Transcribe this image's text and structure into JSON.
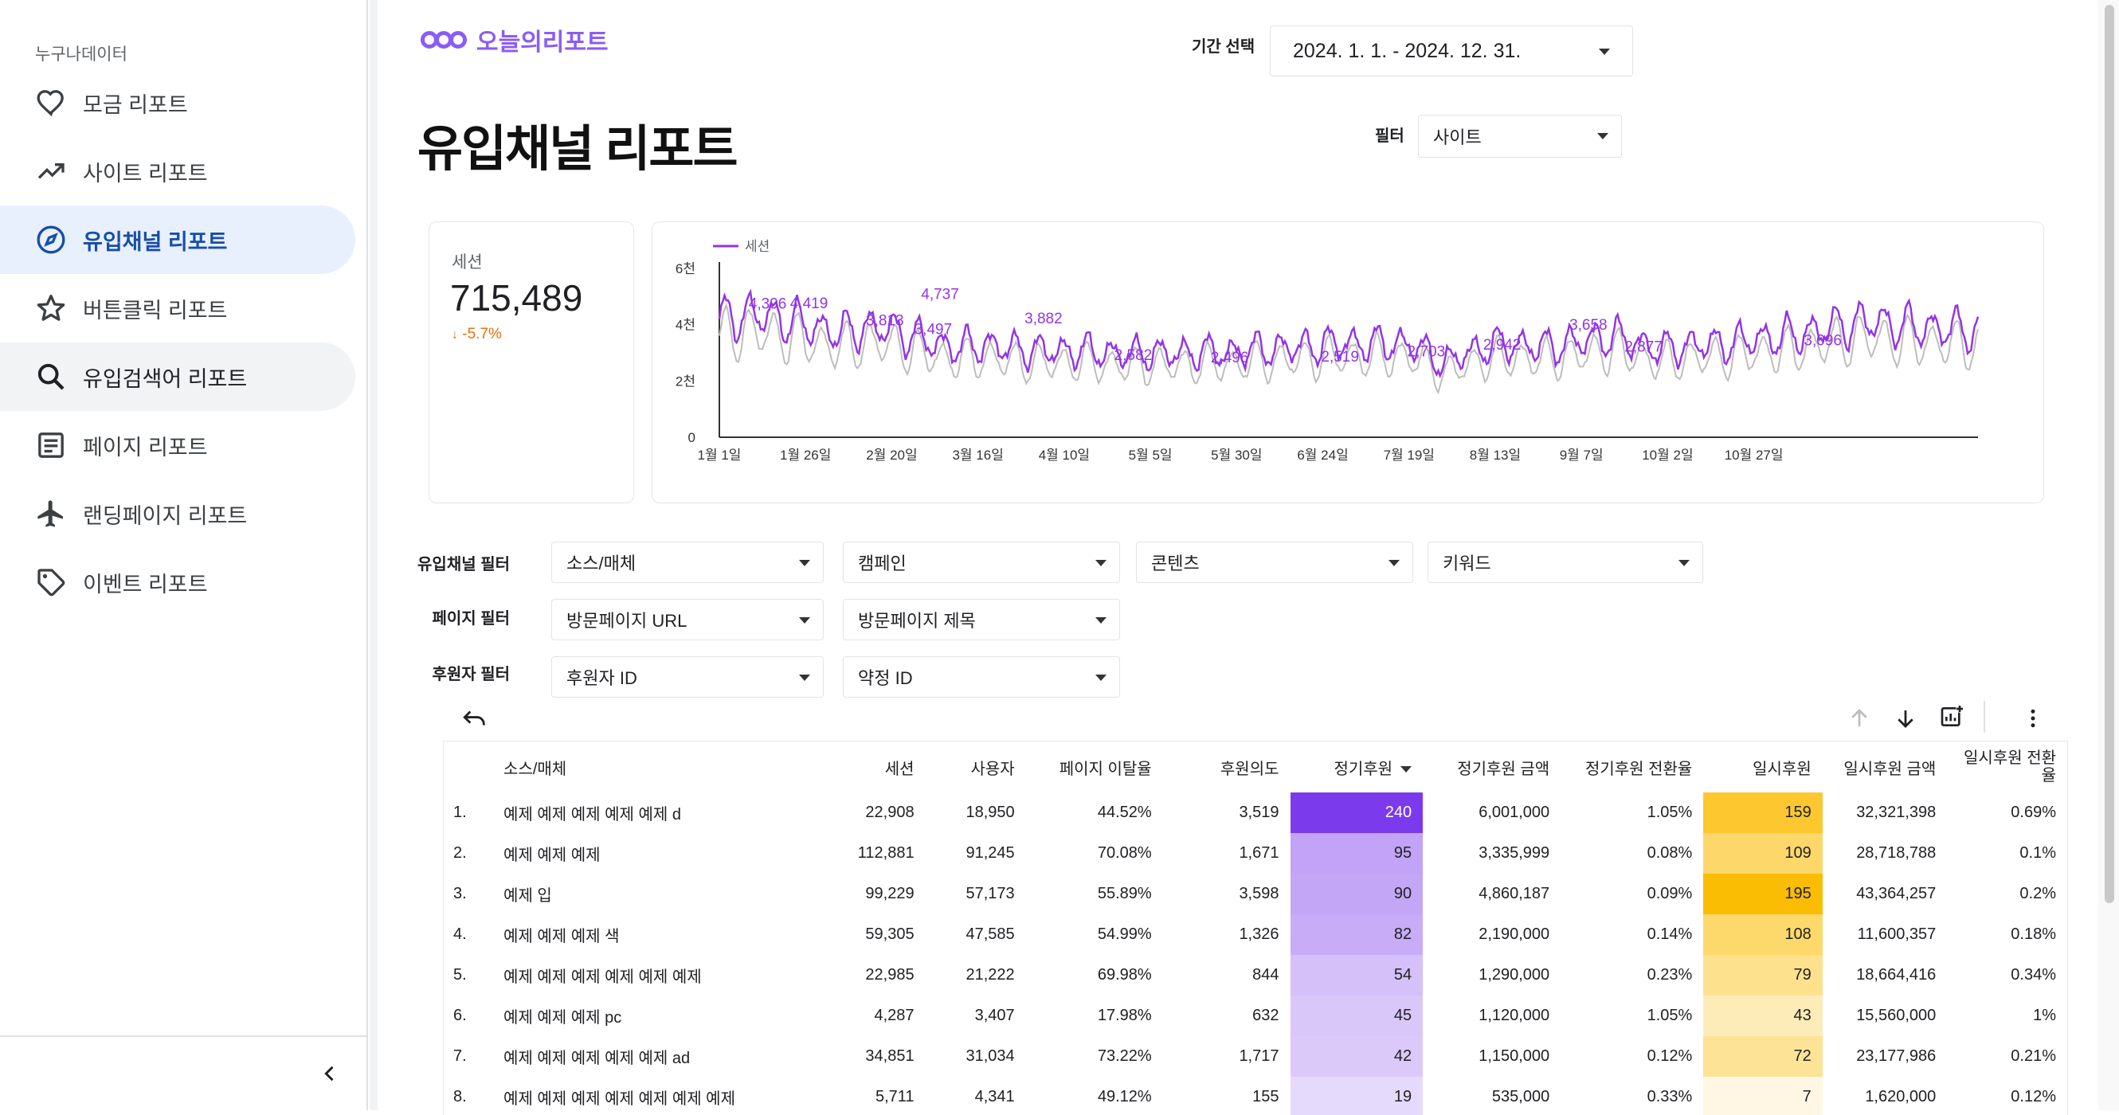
{
  "sidebar": {
    "header": "누구나데이터",
    "items": [
      {
        "label": "모금 리포트",
        "icon": "heart-icon"
      },
      {
        "label": "사이트 리포트",
        "icon": "trending-up-icon"
      },
      {
        "label": "유입채널 리포트",
        "icon": "compass-icon"
      },
      {
        "label": "버튼클릭 리포트",
        "icon": "star-icon"
      },
      {
        "label": "유입검색어 리포트",
        "icon": "search-icon"
      },
      {
        "label": "페이지 리포트",
        "icon": "article-icon"
      },
      {
        "label": "랜딩페이지 리포트",
        "icon": "airplane-icon"
      },
      {
        "label": "이벤트 리포트",
        "icon": "tag-icon"
      }
    ],
    "collapse_icon": "chevron-left-icon"
  },
  "brand": {
    "name": "오늘의리포트",
    "color": "#8b5cf6"
  },
  "page_title": "유입채널 리포트",
  "date_range": {
    "label": "기간 선택",
    "value": "2024. 1. 1. - 2024. 12. 31."
  },
  "site_filter": {
    "label": "필터",
    "value": "사이트"
  },
  "scorecard": {
    "label": "세션",
    "value": "715,489",
    "delta": "-5.7%",
    "delta_color": "#e8710a"
  },
  "chart_data": {
    "type": "line",
    "title": "",
    "series": [
      {
        "name": "세션",
        "color": "#9334e6"
      }
    ],
    "y_ticks": [
      "0",
      "2천",
      "4천",
      "6천"
    ],
    "ylim": [
      0,
      6000
    ],
    "x_ticks": [
      "1월 1일",
      "1월 26일",
      "2월 20일",
      "3월 16일",
      "4월 10일",
      "5월 5일",
      "5월 30일",
      "6월 24일",
      "7월 19일",
      "8월 13일",
      "9월 7일",
      "10월 2일",
      "10월 27일"
    ],
    "x_tick_days": [
      0,
      25,
      50,
      75,
      100,
      125,
      150,
      175,
      200,
      225,
      250,
      275,
      300
    ],
    "weekly_points": [
      {
        "day": 0,
        "value": 4200
      },
      {
        "day": 7,
        "value": 4350
      },
      {
        "day": 14,
        "value": 4300
      },
      {
        "day": 21,
        "value": 4100
      },
      {
        "day": 28,
        "value": 3900
      },
      {
        "day": 35,
        "value": 3700
      },
      {
        "day": 42,
        "value": 3900
      },
      {
        "day": 49,
        "value": 3850
      },
      {
        "day": 56,
        "value": 3600
      },
      {
        "day": 63,
        "value": 3300
      },
      {
        "day": 70,
        "value": 3200
      },
      {
        "day": 77,
        "value": 3300
      },
      {
        "day": 84,
        "value": 3150
      },
      {
        "day": 91,
        "value": 3100
      },
      {
        "day": 98,
        "value": 3050
      },
      {
        "day": 105,
        "value": 3100
      },
      {
        "day": 112,
        "value": 3000
      },
      {
        "day": 119,
        "value": 2950
      },
      {
        "day": 126,
        "value": 3000
      },
      {
        "day": 133,
        "value": 2950
      },
      {
        "day": 140,
        "value": 3050
      },
      {
        "day": 147,
        "value": 3000
      },
      {
        "day": 154,
        "value": 3100
      },
      {
        "day": 161,
        "value": 3150
      },
      {
        "day": 168,
        "value": 3200
      },
      {
        "day": 175,
        "value": 3300
      },
      {
        "day": 182,
        "value": 3350
      },
      {
        "day": 189,
        "value": 3300
      },
      {
        "day": 196,
        "value": 3350
      },
      {
        "day": 203,
        "value": 3200
      },
      {
        "day": 210,
        "value": 2600
      },
      {
        "day": 217,
        "value": 3000
      },
      {
        "day": 224,
        "value": 3250
      },
      {
        "day": 231,
        "value": 3300
      },
      {
        "day": 238,
        "value": 3200
      },
      {
        "day": 245,
        "value": 3300
      },
      {
        "day": 252,
        "value": 3450
      },
      {
        "day": 259,
        "value": 3600
      },
      {
        "day": 266,
        "value": 3350
      },
      {
        "day": 273,
        "value": 3100
      },
      {
        "day": 280,
        "value": 3250
      },
      {
        "day": 287,
        "value": 3300
      },
      {
        "day": 294,
        "value": 3350
      },
      {
        "day": 301,
        "value": 3500
      },
      {
        "day": 308,
        "value": 3550
      },
      {
        "day": 315,
        "value": 3700
      },
      {
        "day": 322,
        "value": 3900
      },
      {
        "day": 329,
        "value": 4050
      },
      {
        "day": 336,
        "value": 4100
      },
      {
        "day": 343,
        "value": 3950
      },
      {
        "day": 350,
        "value": 3900
      },
      {
        "day": 357,
        "value": 3850
      },
      {
        "day": 364,
        "value": 3800
      }
    ],
    "data_labels": [
      {
        "day": 14,
        "value": 4396,
        "text": "4,396"
      },
      {
        "day": 26,
        "value": 4419,
        "text": "4,419"
      },
      {
        "day": 48,
        "value": 3813,
        "text": "3,813"
      },
      {
        "day": 64,
        "value": 4737,
        "text": "4,737"
      },
      {
        "day": 62,
        "value": 3497,
        "text": "3,497"
      },
      {
        "day": 94,
        "value": 3882,
        "text": "3,882"
      },
      {
        "day": 120,
        "value": 2582,
        "text": "2,582"
      },
      {
        "day": 148,
        "value": 2496,
        "text": "2,496"
      },
      {
        "day": 180,
        "value": 2519,
        "text": "2,519"
      },
      {
        "day": 205,
        "value": 2703,
        "text": "2,703"
      },
      {
        "day": 227,
        "value": 2942,
        "text": "2,942"
      },
      {
        "day": 252,
        "value": 3658,
        "text": "3,658"
      },
      {
        "day": 268,
        "value": 2877,
        "text": "2,877"
      },
      {
        "day": 320,
        "value": 3096,
        "text": "3,096"
      }
    ]
  },
  "filters": {
    "channel_label": "유입채널 필터",
    "channel": [
      "소스/매체",
      "캠페인",
      "콘텐츠",
      "키워드"
    ],
    "page_label": "페이지 필터",
    "page": [
      "방문페이지 URL",
      "방문페이지 제목"
    ],
    "donor_label": "후원자 필터",
    "donor": [
      "후원자 ID",
      "약정 ID"
    ]
  },
  "toolbar": {
    "undo_icon": "undo-icon",
    "sort_up_icon": "arrow-up-icon",
    "sort_down_icon": "arrow-down-icon",
    "chart_icon": "chart-settings-icon",
    "more_icon": "more-vert-icon"
  },
  "table": {
    "headers": [
      "소스/매체",
      "세션",
      "사용자",
      "페이지 이탈율",
      "후원의도",
      "정기후원",
      "정기후원 금액",
      "정기후원 전환율",
      "일시후원",
      "일시후원 금액",
      "일시후원 전환율"
    ],
    "rows": [
      {
        "idx": "1.",
        "cells": [
          "예제 예제 예제 예제 예제 d",
          "22,908",
          "18,950",
          "44.52%",
          "3,519",
          "240",
          "6,001,000",
          "1.05%",
          "159",
          "32,321,398",
          "0.69%"
        ],
        "reg": 240,
        "once": 159
      },
      {
        "idx": "2.",
        "cells": [
          "예제 예제 예제",
          "112,881",
          "91,245",
          "70.08%",
          "1,671",
          "95",
          "3,335,999",
          "0.08%",
          "109",
          "28,718,788",
          "0.1%"
        ],
        "reg": 95,
        "once": 109
      },
      {
        "idx": "3.",
        "cells": [
          "예제 입",
          "99,229",
          "57,173",
          "55.89%",
          "3,598",
          "90",
          "4,860,187",
          "0.09%",
          "195",
          "43,364,257",
          "0.2%"
        ],
        "reg": 90,
        "once": 195
      },
      {
        "idx": "4.",
        "cells": [
          "예제 예제 예제 색",
          "59,305",
          "47,585",
          "54.99%",
          "1,326",
          "82",
          "2,190,000",
          "0.14%",
          "108",
          "11,600,357",
          "0.18%"
        ],
        "reg": 82,
        "once": 108
      },
      {
        "idx": "5.",
        "cells": [
          "예제 예제 예제 예제 예제 예제",
          "22,985",
          "21,222",
          "69.98%",
          "844",
          "54",
          "1,290,000",
          "0.23%",
          "79",
          "18,664,416",
          "0.34%"
        ],
        "reg": 54,
        "once": 79
      },
      {
        "idx": "6.",
        "cells": [
          "예제 예제 예제 pc",
          "4,287",
          "3,407",
          "17.98%",
          "632",
          "45",
          "1,120,000",
          "1.05%",
          "43",
          "15,560,000",
          "1%"
        ],
        "reg": 45,
        "once": 43
      },
      {
        "idx": "7.",
        "cells": [
          "예제 예제 예제 예제 예제 ad",
          "34,851",
          "31,034",
          "73.22%",
          "1,717",
          "42",
          "1,150,000",
          "0.12%",
          "72",
          "23,177,986",
          "0.21%"
        ],
        "reg": 42,
        "once": 72
      },
      {
        "idx": "8.",
        "cells": [
          "예제 예제 예제 예제 예제 예제 예제",
          "5,711",
          "4,341",
          "49.12%",
          "155",
          "19",
          "535,000",
          "0.33%",
          "7",
          "1,620,000",
          "0.12%"
        ],
        "reg": 19,
        "once": 7
      }
    ],
    "heat_regular_color": "#7c3aed",
    "heat_once_color": "#fbbc04"
  }
}
